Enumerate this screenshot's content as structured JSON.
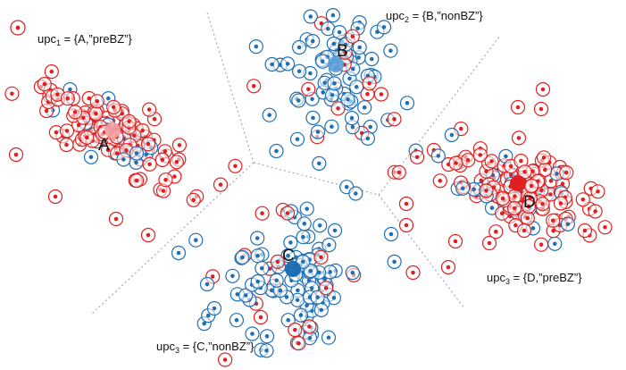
{
  "colors": {
    "preBZ": "#e02020",
    "nonBZ": "#1f6fb5",
    "separator": "#9a9a9a",
    "text": "#111111"
  },
  "point_types": {
    "preBZ": "red-circle-dot",
    "nonBZ": "blue-circle-dot"
  },
  "clusters": [
    {
      "id": "A",
      "center_label": "A",
      "upc_prefix": "upc",
      "upc_sub": "1",
      "upc_value": " = {A,”preBZ”}",
      "class": "preBZ"
    },
    {
      "id": "B",
      "center_label": "B",
      "upc_prefix": "upc",
      "upc_sub": "2",
      "upc_value": " = {B,”nonBZ”}",
      "class": "nonBZ"
    },
    {
      "id": "C",
      "center_label": "C",
      "upc_prefix": "upc",
      "upc_sub": "3",
      "upc_value": " = {C,”nonBZ”}",
      "class": "nonBZ"
    },
    {
      "id": "D",
      "center_label": "D",
      "upc_prefix": "upc",
      "upc_sub": "3",
      "upc_value": " = {D,”preBZ”}",
      "class": "preBZ"
    }
  ]
}
